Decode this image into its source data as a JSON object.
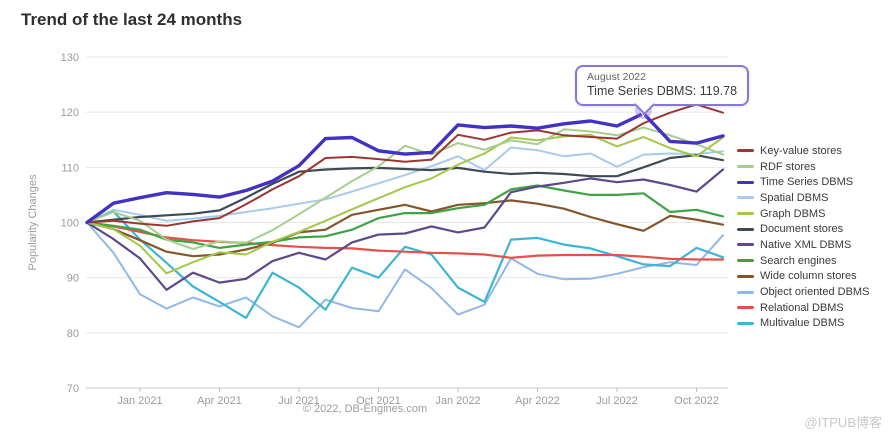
{
  "title": "Trend of the last 24 months",
  "copyright": "© 2022, DB-Engines.com",
  "watermark": "@ITPUB博客",
  "tooltip": {
    "date": "August 2022",
    "text": "Time Series DBMS: 119.78",
    "border_color": "#8678d8"
  },
  "chart_data": {
    "type": "line",
    "title": "Trend of the last 24 months",
    "xlabel": "",
    "ylabel": "Popularity Changes",
    "ylim": [
      70,
      130
    ],
    "ytick_step": 10,
    "grid": true,
    "legend_position": "right",
    "x_months": [
      "Nov 2020",
      "Dec 2020",
      "Jan 2021",
      "Feb 2021",
      "Mar 2021",
      "Apr 2021",
      "May 2021",
      "Jun 2021",
      "Jul 2021",
      "Aug 2021",
      "Sep 2021",
      "Oct 2021",
      "Nov 2021",
      "Dec 2021",
      "Jan 2022",
      "Feb 2022",
      "Mar 2022",
      "Apr 2022",
      "May 2022",
      "Jun 2022",
      "Jul 2022",
      "Aug 2022",
      "Sep 2022",
      "Oct 2022",
      "Nov 2022"
    ],
    "x_ticks": [
      {
        "label": "Jan 2021",
        "month_index": 2
      },
      {
        "label": "Apr 2021",
        "month_index": 5
      },
      {
        "label": "Jul 2021",
        "month_index": 8
      },
      {
        "label": "Oct 2021",
        "month_index": 11
      },
      {
        "label": "Jan 2022",
        "month_index": 14
      },
      {
        "label": "Apr 2022",
        "month_index": 17
      },
      {
        "label": "Jul 2022",
        "month_index": 20
      },
      {
        "label": "Oct 2022",
        "month_index": 23
      }
    ],
    "marker": {
      "series": "Time Series DBMS",
      "month": "August 2022",
      "month_index": 21,
      "value": 119.78,
      "color": "#2a1b9e",
      "halo_color": "rgba(123,104,216,0.35)"
    },
    "series": [
      {
        "name": "Key-value stores",
        "color": "#9a3733",
        "width": 2,
        "values": [
          100,
          100.3,
          99.8,
          99.4,
          100.2,
          100.8,
          103.3,
          106,
          108.4,
          111.7,
          111.9,
          111.5,
          111,
          111.4,
          115.9,
          115,
          116.3,
          116.7,
          115.8,
          115.5,
          115.2,
          118,
          119.9,
          121.4,
          119.9
        ]
      },
      {
        "name": "RDF stores",
        "color": "#a6ce8c",
        "width": 2,
        "values": [
          100,
          101.9,
          100.3,
          96.9,
          95.2,
          96.6,
          96.3,
          98.6,
          101.5,
          104.5,
          107.5,
          110.2,
          113.9,
          112.3,
          114.4,
          113.2,
          114.9,
          114.2,
          116.9,
          116.5,
          115.8,
          117.2,
          115.8,
          114.2,
          112.3
        ]
      },
      {
        "name": "Time Series DBMS",
        "color": "#4331c1",
        "width": 3.4,
        "values": [
          100,
          103.5,
          104.5,
          105.4,
          105.1,
          104.6,
          105.8,
          107.5,
          110.3,
          115.2,
          115.4,
          113,
          112.4,
          112.7,
          117.7,
          117.2,
          117.5,
          117.1,
          117.9,
          118.4,
          117.5,
          119.78,
          114.7,
          114.4,
          115.7
        ]
      },
      {
        "name": "Spatial DBMS",
        "color": "#a7cbec",
        "width": 2,
        "values": [
          100,
          102.3,
          101.4,
          100.3,
          100.7,
          101.2,
          101.9,
          102.6,
          103.4,
          104.2,
          105.6,
          107.1,
          108.6,
          110.2,
          112,
          109.5,
          113.6,
          113.1,
          112,
          112.5,
          110.1,
          112.3,
          112.5,
          112.4,
          112.9
        ]
      },
      {
        "name": "Graph DBMS",
        "color": "#a4c74a",
        "width": 2,
        "values": [
          100,
          98.8,
          95.8,
          90.8,
          92.8,
          94.6,
          94.2,
          96.5,
          98.3,
          100.3,
          102.4,
          104.4,
          106.4,
          108,
          110.5,
          112.5,
          115.4,
          114.9,
          115.6,
          115.9,
          113.8,
          115.5,
          113.5,
          112,
          115.4
        ]
      },
      {
        "name": "Document stores",
        "color": "#3e4a54",
        "width": 2.2,
        "values": [
          100,
          100.5,
          101,
          101.3,
          101.6,
          102.2,
          104.5,
          107,
          109.2,
          109.6,
          109.8,
          109.9,
          109.7,
          109.5,
          109.9,
          109.2,
          108.8,
          109,
          108.8,
          108.4,
          108.4,
          110,
          111.7,
          112.2,
          111.3
        ]
      },
      {
        "name": "Native XML DBMS",
        "color": "#5d4a8a",
        "width": 2.2,
        "values": [
          100,
          97,
          93.5,
          87.8,
          90.9,
          89.1,
          89.8,
          93,
          94.5,
          93.3,
          96.4,
          97.8,
          98,
          99.3,
          98.2,
          99.1,
          105.5,
          106.5,
          107.2,
          108,
          107.3,
          107.8,
          106.8,
          105.6,
          109.6
        ]
      },
      {
        "name": "Search engines",
        "color": "#3fa245",
        "width": 2.2,
        "values": [
          100,
          99.4,
          98.7,
          96.9,
          96.4,
          95.4,
          96,
          96.5,
          97.3,
          97.5,
          98.7,
          100.8,
          101.7,
          101.7,
          102.6,
          103.2,
          106,
          106.7,
          105.8,
          105,
          105,
          105.3,
          101.9,
          102.3,
          101.1
        ]
      },
      {
        "name": "Wide column stores",
        "color": "#84562c",
        "width": 2.2,
        "values": [
          100,
          98.8,
          96.8,
          94.7,
          93.9,
          94.2,
          95.1,
          96.3,
          98.2,
          98.7,
          101.4,
          102.3,
          103.2,
          102,
          103.2,
          103.5,
          104,
          103.4,
          102.5,
          101,
          99.7,
          98.5,
          101.2,
          100.5,
          99.6
        ]
      },
      {
        "name": "Object oriented DBMS",
        "color": "#90b9e8",
        "width": 2,
        "values": [
          100,
          94.5,
          87,
          84.4,
          86.4,
          84.8,
          86.4,
          83,
          81,
          86,
          84.5,
          83.9,
          91.5,
          88.1,
          83.3,
          85.1,
          93.5,
          90.7,
          89.7,
          89.8,
          90.7,
          91.9,
          92.8,
          92.3,
          97.7
        ]
      },
      {
        "name": "Relational DBMS",
        "color": "#e4504b",
        "width": 2.2,
        "values": [
          100,
          99.3,
          98.3,
          97.3,
          96.8,
          96.5,
          96.3,
          95.9,
          95.6,
          95.4,
          95.3,
          94.9,
          94.7,
          94.5,
          94.4,
          94.2,
          93.6,
          94,
          94.1,
          94.1,
          94.1,
          93.8,
          93.4,
          93.3,
          93.3
        ]
      },
      {
        "name": "Multivalue DBMS",
        "color": "#3fb5d5",
        "width": 2.2,
        "values": [
          100,
          102,
          96.9,
          92.7,
          88.4,
          85.6,
          82.7,
          90.9,
          88.2,
          84.2,
          91.8,
          90,
          95.6,
          94.2,
          88.2,
          85.6,
          96.9,
          97.2,
          96,
          95.3,
          93.9,
          92.4,
          92.1,
          95.4,
          93.7
        ]
      }
    ]
  }
}
